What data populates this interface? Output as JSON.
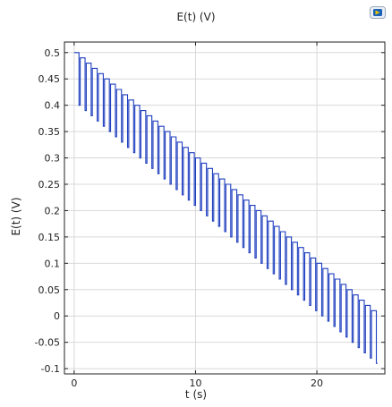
{
  "chart_data": {
    "type": "line",
    "title": "E(t) (V)",
    "xlabel": "t (s)",
    "ylabel": "E(t) (V)",
    "xlim": [
      -0.8,
      25.6
    ],
    "ylim": [
      -0.11,
      0.52
    ],
    "x_ticks": [
      0,
      10,
      20
    ],
    "y_ticks": [
      0.5,
      0.45,
      0.4,
      0.35,
      0.3,
      0.25,
      0.2,
      0.15,
      0.1,
      0.05,
      0,
      -0.05,
      -0.1
    ],
    "y_tick_labels": [
      "0.5",
      "0.45",
      "0.4",
      "0.35",
      "0.3",
      "0.25",
      "0.2",
      "0.15",
      "0.1",
      "0.05",
      "0",
      "-0.05",
      "-0.1"
    ],
    "x_tick_labels": [
      "0",
      "10",
      "20"
    ],
    "grid": true,
    "series": [
      {
        "style": "staircase-with-pulses",
        "color": "#1f3fbf",
        "start_x": 0,
        "step_period_s": 0.5,
        "step_count": 50,
        "start_potential": 0.5,
        "step_height": -0.01,
        "pulse_amplitude": -0.1,
        "pulse_duration_s": 0.1
      }
    ]
  },
  "colors": {
    "series": "#1f3fbf",
    "grid": "#d9d9d9",
    "axis": "#222222"
  },
  "icons": {
    "logo": "comsol-logo-icon"
  }
}
